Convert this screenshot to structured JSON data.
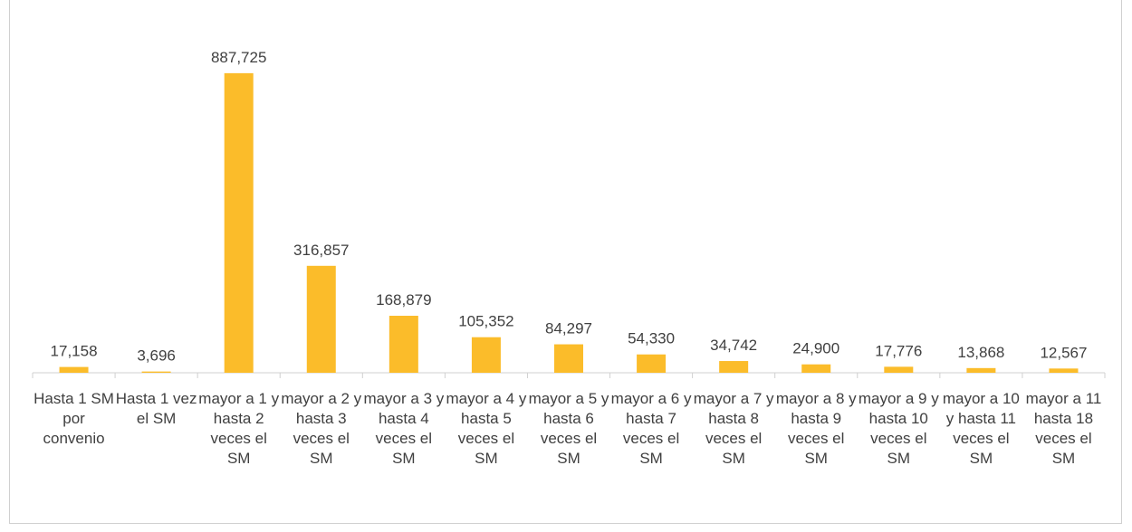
{
  "chart_data": {
    "type": "bar",
    "categories": [
      "Hasta 1 SM por convenio",
      "Hasta 1 vez el SM",
      "mayor a 1 y hasta 2 veces el SM",
      "mayor a 2 y hasta 3 veces el SM",
      "mayor a 3 y hasta 4 veces el SM",
      "mayor a 4 y hasta 5 veces el SM",
      "mayor a 5 y hasta 6 veces el SM",
      "mayor a 6 y hasta 7 veces el SM",
      "mayor a 7 y hasta 8 veces el SM",
      "mayor a 8 y hasta 9 veces el SM",
      "mayor a 9 y hasta 10 veces el SM",
      "mayor a 10 y hasta 11 veces el SM",
      "mayor a 11 hasta 18 veces el SM"
    ],
    "values": [
      17158,
      3696,
      887725,
      316857,
      168879,
      105352,
      84297,
      54330,
      34742,
      24900,
      17776,
      13868,
      12567
    ],
    "value_labels": [
      "17,158",
      "3,696",
      "887,725",
      "316,857",
      "168,879",
      "105,352",
      "84,297",
      "54,330",
      "34,742",
      "24,900",
      "17,776",
      "13,868",
      "12,567"
    ],
    "color": "#fbbc2a",
    "ylim": [
      0,
      1000000
    ]
  }
}
